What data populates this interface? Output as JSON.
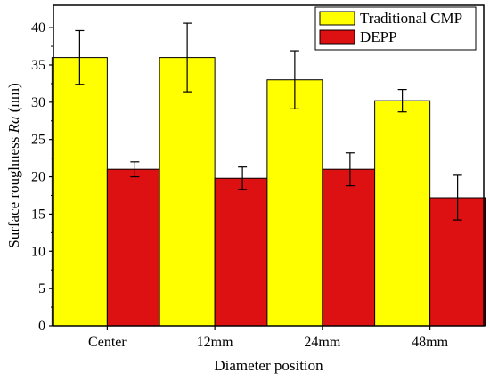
{
  "chart_data": {
    "type": "bar",
    "categories": [
      "Center",
      "12mm",
      "24mm",
      "48mm"
    ],
    "series": [
      {
        "name": "Traditional CMP",
        "values": [
          36.0,
          36.0,
          33.0,
          30.2
        ],
        "errors": [
          3.6,
          4.6,
          3.9,
          1.5
        ]
      },
      {
        "name": "DEPP",
        "values": [
          21.0,
          19.8,
          21.0,
          17.2
        ],
        "errors": [
          1.0,
          1.5,
          2.2,
          3.0
        ]
      }
    ],
    "xlabel": "Diameter position",
    "ylabel_prefix": "Surface roughness ",
    "ylabel_symbol": "Ra",
    "ylabel_unit": " (nm)",
    "ylim": [
      0,
      43
    ],
    "yticks": [
      0,
      5,
      10,
      15,
      20,
      25,
      30,
      35,
      40
    ],
    "ytick_labels": [
      "0",
      "5",
      "10",
      "15",
      "20",
      "25",
      "30",
      "35",
      "40"
    ],
    "legend_position": "top-right",
    "grid": false,
    "colors": {
      "series": [
        "#ffff00",
        "#dd1111"
      ],
      "axis": "#000000"
    }
  }
}
